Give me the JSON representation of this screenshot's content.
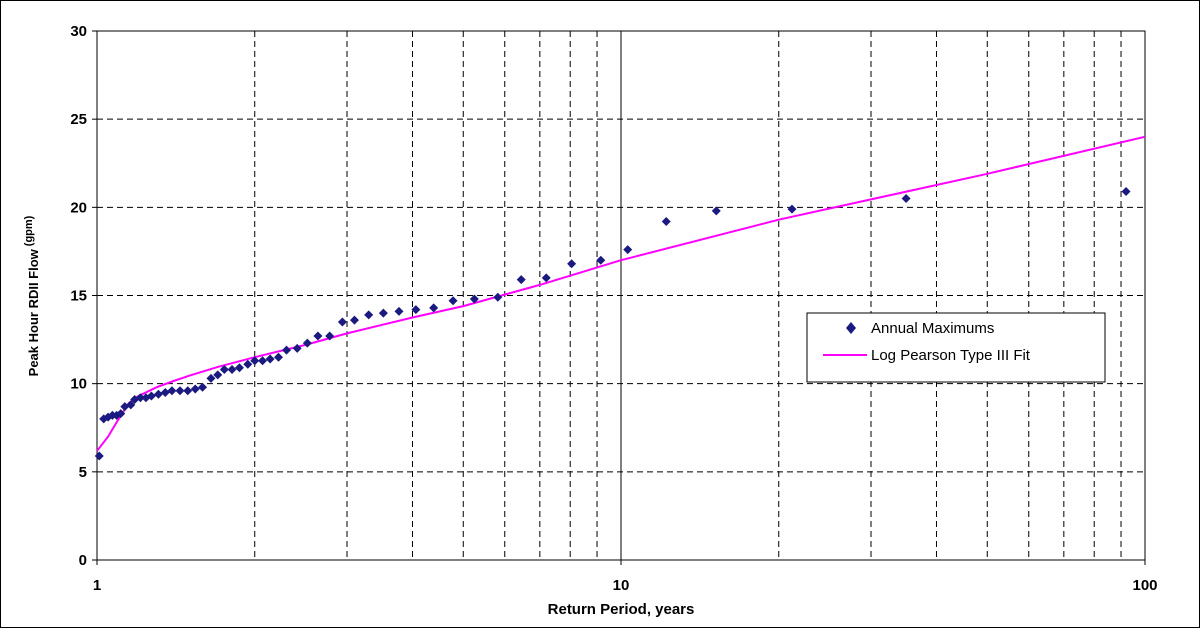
{
  "chart_data": {
    "type": "scatter",
    "xlabel": "Return Period, years",
    "ylabel": "Peak Hour RDII Flow",
    "ylabel_unit": "(gpm)",
    "x_scale": "log",
    "xlim": [
      1,
      100
    ],
    "ylim": [
      0,
      30
    ],
    "x_ticks": [
      {
        "value": 1,
        "label": "1"
      },
      {
        "value": 10,
        "label": "10"
      },
      {
        "value": 100,
        "label": "100"
      }
    ],
    "y_ticks": [
      {
        "value": 0,
        "label": "0"
      },
      {
        "value": 5,
        "label": "5"
      },
      {
        "value": 10,
        "label": "10"
      },
      {
        "value": 15,
        "label": "15"
      },
      {
        "value": 20,
        "label": "20"
      },
      {
        "value": 25,
        "label": "25"
      },
      {
        "value": 30,
        "label": "30"
      }
    ],
    "grid": true,
    "legend_position": "right",
    "series": [
      {
        "name": "Annual Maximums",
        "marker": "diamond",
        "color": "#1a1a80",
        "points": [
          [
            1.01,
            5.9
          ],
          [
            1.03,
            8.0
          ],
          [
            1.05,
            8.1
          ],
          [
            1.07,
            8.2
          ],
          [
            1.09,
            8.2
          ],
          [
            1.11,
            8.3
          ],
          [
            1.13,
            8.7
          ],
          [
            1.16,
            8.8
          ],
          [
            1.18,
            9.1
          ],
          [
            1.21,
            9.2
          ],
          [
            1.24,
            9.2
          ],
          [
            1.27,
            9.3
          ],
          [
            1.31,
            9.4
          ],
          [
            1.35,
            9.5
          ],
          [
            1.39,
            9.6
          ],
          [
            1.44,
            9.6
          ],
          [
            1.49,
            9.6
          ],
          [
            1.54,
            9.7
          ],
          [
            1.59,
            9.8
          ],
          [
            1.65,
            10.3
          ],
          [
            1.7,
            10.5
          ],
          [
            1.75,
            10.8
          ],
          [
            1.81,
            10.8
          ],
          [
            1.87,
            10.9
          ],
          [
            1.94,
            11.1
          ],
          [
            2.0,
            11.3
          ],
          [
            2.07,
            11.3
          ],
          [
            2.14,
            11.4
          ],
          [
            2.22,
            11.5
          ],
          [
            2.3,
            11.9
          ],
          [
            2.41,
            12.0
          ],
          [
            2.52,
            12.3
          ],
          [
            2.64,
            12.7
          ],
          [
            2.78,
            12.7
          ],
          [
            2.94,
            13.5
          ],
          [
            3.1,
            13.6
          ],
          [
            3.3,
            13.9
          ],
          [
            3.52,
            14.0
          ],
          [
            3.77,
            14.1
          ],
          [
            4.06,
            14.2
          ],
          [
            4.39,
            14.3
          ],
          [
            4.78,
            14.7
          ],
          [
            5.25,
            14.8
          ],
          [
            5.82,
            14.9
          ],
          [
            6.45,
            15.9
          ],
          [
            7.2,
            16.0
          ],
          [
            8.05,
            16.8
          ],
          [
            9.15,
            17.0
          ],
          [
            10.3,
            17.6
          ],
          [
            12.2,
            19.2
          ],
          [
            15.2,
            19.8
          ],
          [
            21.2,
            19.9
          ],
          [
            35.0,
            20.5
          ],
          [
            92.0,
            20.9
          ]
        ]
      },
      {
        "name": "Log Pearson Type III Fit",
        "line": true,
        "color": "#ff00ff",
        "points": [
          [
            1.001,
            6.2
          ],
          [
            1.05,
            7.0
          ],
          [
            1.1,
            8.0
          ],
          [
            1.15,
            8.9
          ],
          [
            1.2,
            9.3
          ],
          [
            1.3,
            9.8
          ],
          [
            1.4,
            10.15
          ],
          [
            1.5,
            10.45
          ],
          [
            1.7,
            10.95
          ],
          [
            2.0,
            11.5
          ],
          [
            2.5,
            12.2
          ],
          [
            3.0,
            12.85
          ],
          [
            4.0,
            13.75
          ],
          [
            5.0,
            14.4
          ],
          [
            7.0,
            15.6
          ],
          [
            10.0,
            17.0
          ],
          [
            20.0,
            19.3
          ],
          [
            50.0,
            21.9
          ],
          [
            100.0,
            24.0
          ]
        ]
      }
    ]
  }
}
